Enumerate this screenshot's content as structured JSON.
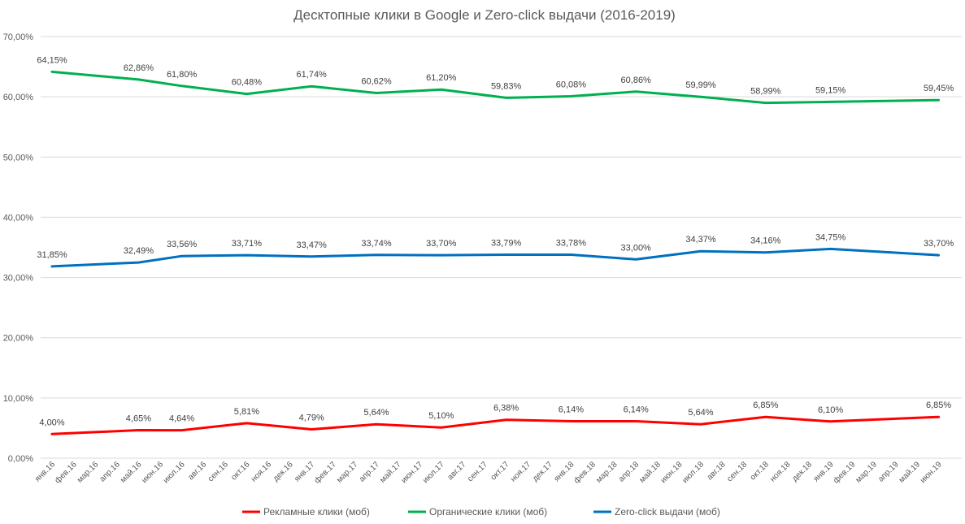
{
  "chart_data": {
    "type": "line",
    "title": "Десктопные клики в Google и Zero-click выдачи (2016-2019)",
    "xlabel": "",
    "ylabel": "",
    "ylim": [
      0,
      70
    ],
    "yticks": [
      0,
      10,
      20,
      30,
      40,
      50,
      60,
      70
    ],
    "ytick_labels": [
      "0,00%",
      "10,00%",
      "20,00%",
      "30,00%",
      "40,00%",
      "50,00%",
      "60,00%",
      "70,00%"
    ],
    "grid": true,
    "legend": "bottom",
    "categories": [
      "янв.16",
      "фев.16",
      "мар.16",
      "апр.16",
      "май.16",
      "июн.16",
      "июл.16",
      "авг.16",
      "сен.16",
      "окт.16",
      "ноя.16",
      "дек.16",
      "янв.17",
      "фев.17",
      "мар.17",
      "апр.17",
      "май.17",
      "июн.17",
      "июл.17",
      "авг.17",
      "сен.17",
      "окт.17",
      "ноя.17",
      "дек.17",
      "янв.18",
      "фев.18",
      "мар.18",
      "апр.18",
      "май.18",
      "июн.18",
      "июл.18",
      "авг.18",
      "сен.18",
      "окт.18",
      "ноя.18",
      "дек.18",
      "янв.19",
      "фев.19",
      "мар.19",
      "апр.19",
      "май.19",
      "июн.19"
    ],
    "series": [
      {
        "name": "Рекламные клики (моб)",
        "color": "#ff0000",
        "points": [
          {
            "i": 0,
            "v": 4.0,
            "label": "4,00%"
          },
          {
            "i": 4,
            "v": 4.65,
            "label": "4,65%"
          },
          {
            "i": 6,
            "v": 4.64,
            "label": "4,64%"
          },
          {
            "i": 9,
            "v": 5.81,
            "label": "5,81%"
          },
          {
            "i": 12,
            "v": 4.79,
            "label": "4,79%"
          },
          {
            "i": 15,
            "v": 5.64,
            "label": "5,64%"
          },
          {
            "i": 18,
            "v": 5.1,
            "label": "5,10%"
          },
          {
            "i": 21,
            "v": 6.38,
            "label": "6,38%"
          },
          {
            "i": 24,
            "v": 6.14,
            "label": "6,14%"
          },
          {
            "i": 27,
            "v": 6.14,
            "label": "6,14%"
          },
          {
            "i": 30,
            "v": 5.64,
            "label": "5,64%"
          },
          {
            "i": 33,
            "v": 6.85,
            "label": "6,85%"
          },
          {
            "i": 36,
            "v": 6.1,
            "label": "6,10%"
          },
          {
            "i": 41,
            "v": 6.85,
            "label": "6,85%"
          }
        ]
      },
      {
        "name": "Органические клики (моб)",
        "color": "#00b050",
        "points": [
          {
            "i": 0,
            "v": 64.15,
            "label": "64,15%"
          },
          {
            "i": 4,
            "v": 62.86,
            "label": "62,86%"
          },
          {
            "i": 6,
            "v": 61.8,
            "label": "61,80%"
          },
          {
            "i": 9,
            "v": 60.48,
            "label": "60,48%"
          },
          {
            "i": 12,
            "v": 61.74,
            "label": "61,74%"
          },
          {
            "i": 15,
            "v": 60.62,
            "label": "60,62%"
          },
          {
            "i": 18,
            "v": 61.2,
            "label": "61,20%"
          },
          {
            "i": 21,
            "v": 59.83,
            "label": "59,83%"
          },
          {
            "i": 24,
            "v": 60.08,
            "label": "60,08%"
          },
          {
            "i": 27,
            "v": 60.86,
            "label": "60,86%"
          },
          {
            "i": 30,
            "v": 59.99,
            "label": "59,99%"
          },
          {
            "i": 33,
            "v": 58.99,
            "label": "58,99%"
          },
          {
            "i": 36,
            "v": 59.15,
            "label": "59,15%"
          },
          {
            "i": 41,
            "v": 59.45,
            "label": "59,45%"
          }
        ]
      },
      {
        "name": "Zero-click выдачи (моб)",
        "color": "#0070c0",
        "points": [
          {
            "i": 0,
            "v": 31.85,
            "label": "31,85%"
          },
          {
            "i": 4,
            "v": 32.49,
            "label": "32,49%"
          },
          {
            "i": 6,
            "v": 33.56,
            "label": "33,56%"
          },
          {
            "i": 9,
            "v": 33.71,
            "label": "33,71%"
          },
          {
            "i": 12,
            "v": 33.47,
            "label": "33,47%"
          },
          {
            "i": 15,
            "v": 33.74,
            "label": "33,74%"
          },
          {
            "i": 18,
            "v": 33.7,
            "label": "33,70%"
          },
          {
            "i": 21,
            "v": 33.79,
            "label": "33,79%"
          },
          {
            "i": 24,
            "v": 33.78,
            "label": "33,78%"
          },
          {
            "i": 27,
            "v": 33.0,
            "label": "33,00%"
          },
          {
            "i": 30,
            "v": 34.37,
            "label": "34,37%"
          },
          {
            "i": 33,
            "v": 34.16,
            "label": "34,16%"
          },
          {
            "i": 36,
            "v": 34.75,
            "label": "34,75%"
          },
          {
            "i": 41,
            "v": 33.7,
            "label": "33,70%"
          }
        ]
      }
    ]
  }
}
